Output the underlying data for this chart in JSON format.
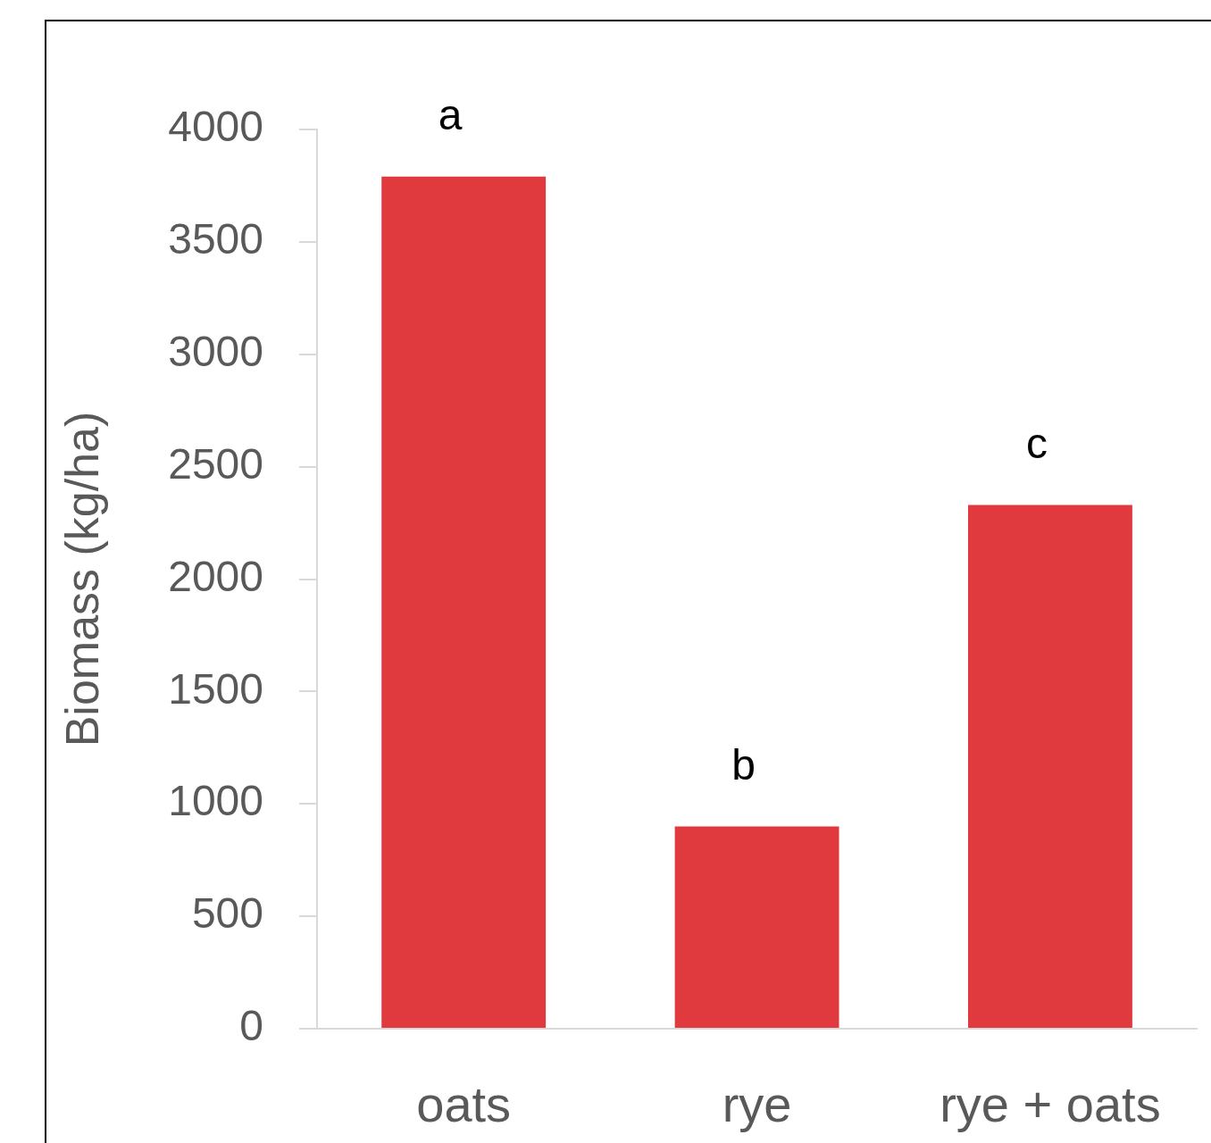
{
  "chart_data": {
    "type": "bar",
    "ylabel": "Biomass (kg/ha)",
    "categories": [
      "oats",
      "rye",
      "rye + oats"
    ],
    "values": [
      3790,
      900,
      2330
    ],
    "color": "#e0393e",
    "ylim": [
      0,
      4000
    ],
    "yticks": [
      0,
      500,
      1000,
      1500,
      2000,
      2500,
      3000,
      3500,
      4000
    ],
    "grid": false,
    "annotations": [
      {
        "text": "a",
        "x": "oats",
        "y": 3790
      },
      {
        "text": "b",
        "x": "rye",
        "y": 900
      },
      {
        "text": "c",
        "x": "rye + oats",
        "y": 2330
      }
    ]
  }
}
